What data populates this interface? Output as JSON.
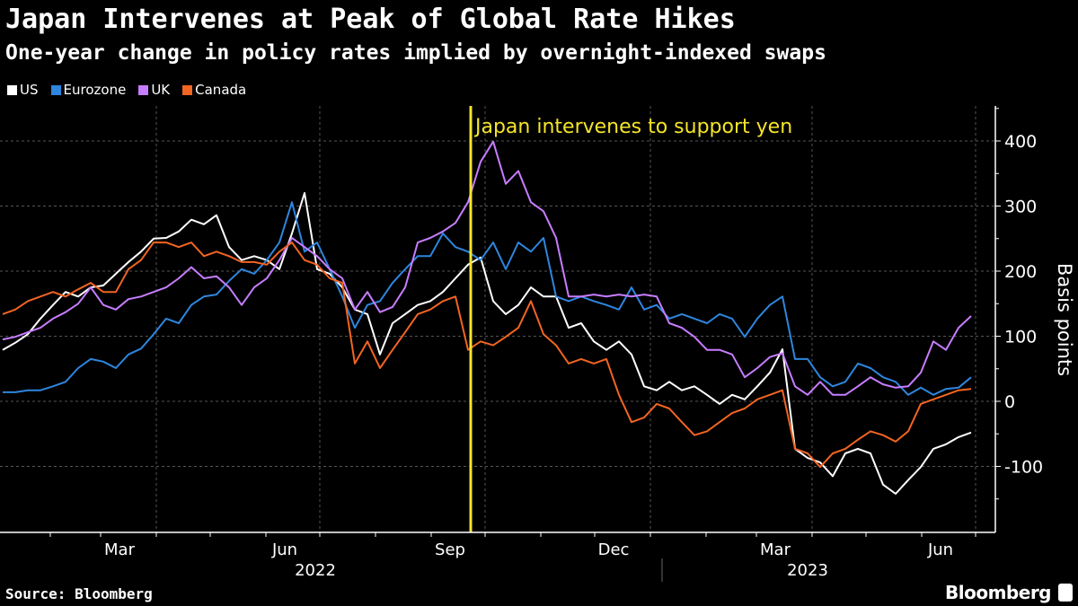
{
  "header": {
    "title": "Japan Intervenes at Peak of Global Rate Hikes",
    "subtitle": "One-year change in policy rates implied by overnight-indexed swaps"
  },
  "footer": {
    "source": "Source: Bloomberg",
    "brand": "Bloomberg"
  },
  "chart_data": {
    "type": "line",
    "title": "Japan Intervenes at Peak of Global Rate Hikes",
    "subtitle": "One-year change in policy rates implied by overnight-indexed swaps",
    "ylabel": "Basis points",
    "xlabel": "",
    "ylim": [
      -200,
      450
    ],
    "yticks": [
      400,
      300,
      200,
      100,
      0,
      -100
    ],
    "x_start": "2022-01-03",
    "x_step_days": 7,
    "x_tick_labels": [
      {
        "label": "Mar",
        "date": "2022-03-15"
      },
      {
        "label": "Jun",
        "date": "2022-06-15"
      },
      {
        "label": "Sep",
        "date": "2022-09-15"
      },
      {
        "label": "Dec",
        "date": "2022-12-15"
      },
      {
        "label": "Mar",
        "date": "2023-03-15"
      },
      {
        "label": "Jun",
        "date": "2023-06-15"
      }
    ],
    "x_year_labels": [
      {
        "label": "2022",
        "date": "2022-07-01"
      },
      {
        "label": "2023",
        "date": "2023-04-01"
      }
    ],
    "grid": true,
    "legend_position": "top-left",
    "annotation": {
      "label": "Japan intervenes to support yen",
      "date": "2022-09-22",
      "color": "#f5e52a"
    },
    "series": [
      {
        "name": "US",
        "color": "#ffffff",
        "values": [
          79,
          90,
          103,
          127,
          148,
          168,
          161,
          175,
          178,
          196,
          214,
          230,
          250,
          251,
          261,
          279,
          272,
          286,
          237,
          217,
          223,
          217,
          203,
          258,
          320,
          203,
          196,
          175,
          141,
          134,
          72,
          120,
          134,
          148,
          154,
          168,
          189,
          210,
          221,
          154,
          134,
          148,
          175,
          161,
          161,
          113,
          120,
          92,
          79,
          92,
          72,
          23,
          17,
          30,
          17,
          23,
          10,
          -4,
          10,
          3,
          23,
          44,
          80,
          -73,
          -87,
          -94,
          -115,
          -80,
          -73,
          -80,
          -128,
          -142,
          -121,
          -101,
          -73,
          -66,
          -55,
          -48
        ]
      },
      {
        "name": "Eurozone",
        "color": "#2e86de",
        "values": [
          14,
          14,
          17,
          17,
          23,
          30,
          51,
          65,
          61,
          51,
          72,
          81,
          103,
          127,
          120,
          148,
          161,
          164,
          185,
          203,
          196,
          217,
          244,
          306,
          230,
          244,
          203,
          161,
          113,
          148,
          154,
          182,
          203,
          223,
          223,
          258,
          237,
          230,
          217,
          244,
          203,
          244,
          230,
          251,
          161,
          154,
          161,
          154,
          148,
          141,
          175,
          141,
          148,
          127,
          134,
          127,
          120,
          134,
          127,
          99,
          127,
          148,
          161,
          65,
          65,
          37,
          23,
          30,
          58,
          51,
          37,
          30,
          10,
          21,
          10,
          19,
          21,
          37
        ]
      },
      {
        "name": "UK",
        "color": "#c77dff",
        "values": [
          95,
          99,
          106,
          113,
          127,
          137,
          150,
          175,
          148,
          141,
          157,
          161,
          168,
          175,
          189,
          206,
          189,
          192,
          175,
          148,
          175,
          189,
          217,
          251,
          237,
          223,
          203,
          189,
          141,
          168,
          137,
          145,
          175,
          244,
          251,
          261,
          274,
          306,
          368,
          399,
          334,
          354,
          306,
          292,
          251,
          161,
          161,
          164,
          161,
          164,
          161,
          164,
          161,
          120,
          113,
          99,
          79,
          79,
          72,
          37,
          51,
          68,
          74,
          23,
          10,
          30,
          10,
          10,
          23,
          37,
          26,
          21,
          23,
          44,
          92,
          79,
          113,
          131
        ]
      },
      {
        "name": "Canada",
        "color": "#f26522",
        "values": [
          134,
          141,
          154,
          161,
          168,
          161,
          172,
          182,
          168,
          168,
          203,
          217,
          244,
          244,
          237,
          244,
          223,
          230,
          223,
          214,
          214,
          210,
          230,
          244,
          217,
          210,
          189,
          182,
          58,
          92,
          51,
          79,
          106,
          134,
          141,
          154,
          161,
          79,
          92,
          86,
          99,
          113,
          154,
          103,
          86,
          58,
          65,
          58,
          65,
          10,
          -32,
          -25,
          -4,
          -11,
          -32,
          -52,
          -46,
          -32,
          -18,
          -11,
          3,
          10,
          17,
          -73,
          -80,
          -101,
          -80,
          -73,
          -59,
          -46,
          -52,
          -62,
          -46,
          -4,
          3,
          10,
          17,
          19
        ]
      }
    ]
  }
}
